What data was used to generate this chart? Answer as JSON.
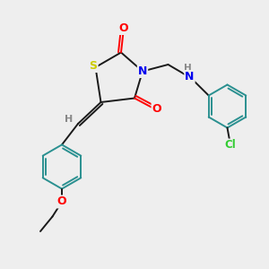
{
  "bg_color": "#eeeeee",
  "atom_colors": {
    "S": "#cccc00",
    "N": "#0000ee",
    "O": "#ff0000",
    "Cl": "#33cc33",
    "C": "#000000",
    "H": "#888888",
    "aromatic": "#2a9090"
  },
  "bond_color": "#1a1a1a",
  "bond_width": 1.4,
  "font_size": 8.5
}
